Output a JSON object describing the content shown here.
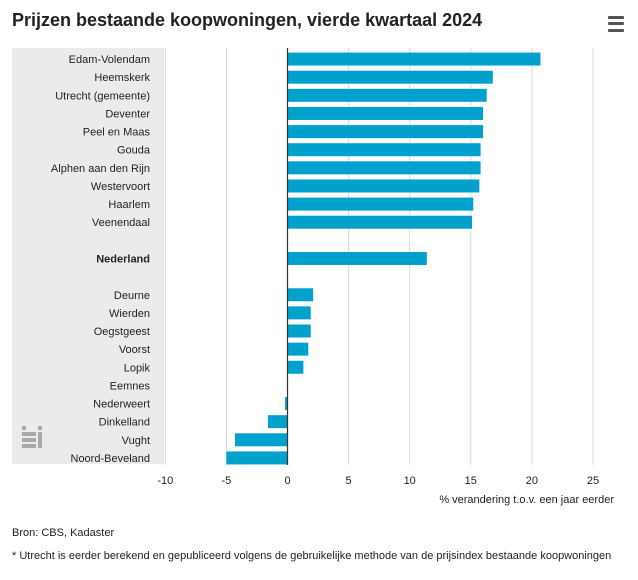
{
  "header": {
    "title": "Prijzen bestaande koopwoningen, vierde kwartaal 2024"
  },
  "menu": {
    "icon": "hamburger-menu-icon"
  },
  "logo": {
    "name": "cbs-logo",
    "text": "cbs"
  },
  "chart_data": {
    "type": "bar",
    "orientation": "horizontal",
    "title": "Prijzen bestaande koopwoningen, vierde kwartaal 2024",
    "xlabel": "% verandering t.o.v. een jaar eerder",
    "xlim": [
      -10,
      25
    ],
    "xticks": [
      -10,
      -5,
      0,
      5,
      10,
      15,
      20,
      25
    ],
    "grid": "vertical",
    "bar_color": "#00a1cd",
    "label_panel_color": "#ebebeb",
    "categories": [
      "Edam-Volendam",
      "Heemskerk",
      "Utrecht (gemeente)",
      "Deventer",
      "Peel en Maas",
      "Gouda",
      "Alphen aan den Rijn",
      "Westervoort",
      "Haarlem",
      "Veenendaal",
      "",
      "Nederland",
      "",
      "Deurne",
      "Wierden",
      "Oegstgeest",
      "Voorst",
      "Lopik",
      "Eemnes",
      "Nederweert",
      "Dinkelland",
      "Vught",
      "Noord-Beveland"
    ],
    "values": [
      20.7,
      16.8,
      16.3,
      16.0,
      16.0,
      15.8,
      15.8,
      15.7,
      15.2,
      15.1,
      null,
      11.4,
      null,
      2.1,
      1.9,
      1.9,
      1.7,
      1.3,
      0.0,
      -0.2,
      -1.6,
      -4.3,
      -5.0
    ],
    "emphasis": [
      "Nederland"
    ]
  },
  "footer": {
    "source": "Bron: CBS, Kadaster",
    "footnote": "* Utrecht is eerder berekend en gepubliceerd volgens de gebruikelijke methode van de prijsindex bestaande koopwoningen"
  }
}
